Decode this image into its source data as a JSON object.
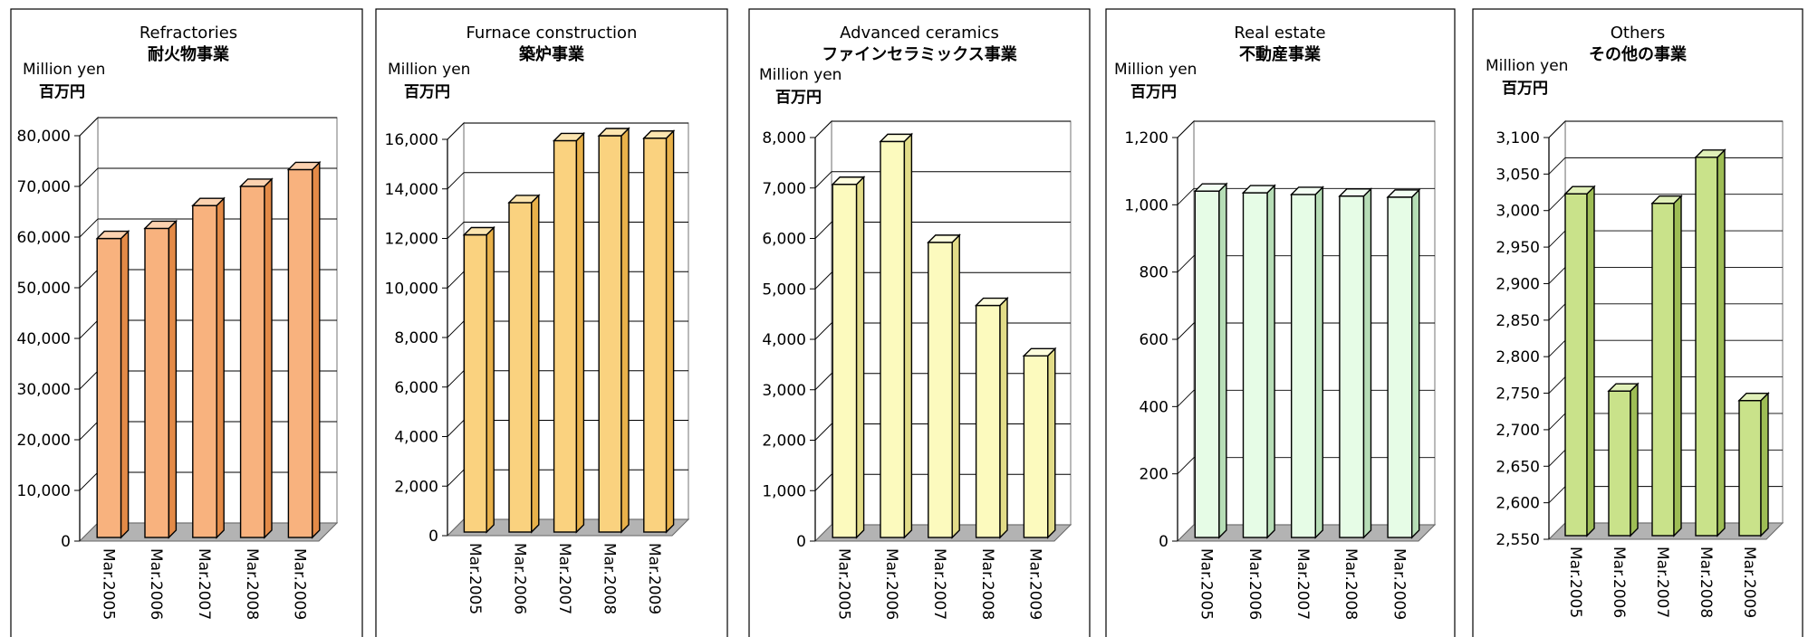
{
  "chart_data": [
    {
      "type": "bar",
      "title": "Refractories",
      "subtitle": "耐火物事業",
      "unit_en": "Million yen",
      "unit_jp": "百万円",
      "categories": [
        "Mar.2005",
        "Mar.2006",
        "Mar.2007",
        "Mar.2008",
        "Mar.2009"
      ],
      "values": [
        59000,
        61000,
        65500,
        69300,
        72600
      ],
      "ylim": [
        0,
        80000
      ],
      "yticks": [
        "0",
        "10,000",
        "20,000",
        "30,000",
        "40,000",
        "50,000",
        "60,000",
        "70,000",
        "80,000"
      ],
      "bar_color": "#F8B27E",
      "bar_side": "#E38A47",
      "bar_top": "#FCD2B0",
      "grid": true
    },
    {
      "type": "bar",
      "title": "Furnace construction",
      "subtitle": "築炉事業",
      "unit_en": "Million yen",
      "unit_jp": "百万円",
      "categories": [
        "Mar.2005",
        "Mar.2006",
        "Mar.2007",
        "Mar.2008",
        "Mar.2009"
      ],
      "values": [
        12000,
        13300,
        15800,
        16000,
        15900
      ],
      "ylim": [
        0,
        16000
      ],
      "yticks": [
        "0",
        "2,000",
        "4,000",
        "6,000",
        "8,000",
        "10,000",
        "12,000",
        "14,000",
        "16,000"
      ],
      "bar_color": "#FAD27F",
      "bar_side": "#E8B14A",
      "bar_top": "#FCE5B0",
      "grid": true
    },
    {
      "type": "bar",
      "title": "Advanced ceramics",
      "subtitle": "ファインセラミックス事業",
      "unit_en": "Million yen",
      "unit_jp": "百万円",
      "categories": [
        "Mar.2005",
        "Mar.2006",
        "Mar.2007",
        "Mar.2008",
        "Mar.2009"
      ],
      "values": [
        7000,
        7850,
        5850,
        4600,
        3600
      ],
      "ylim": [
        0,
        8000
      ],
      "yticks": [
        "0",
        "1,000",
        "2,000",
        "3,000",
        "4,000",
        "5,000",
        "6,000",
        "7,000",
        "8,000"
      ],
      "bar_color": "#FCFABE",
      "bar_side": "#E2DC88",
      "bar_top": "#FEFDDD",
      "grid": true
    },
    {
      "type": "bar",
      "title": "Real estate",
      "subtitle": "不動産事業",
      "unit_en": "Million yen",
      "unit_jp": "百万円",
      "categories": [
        "Mar.2005",
        "Mar.2006",
        "Mar.2007",
        "Mar.2008",
        "Mar.2009"
      ],
      "values": [
        1030,
        1025,
        1020,
        1015,
        1012
      ],
      "ylim": [
        0,
        1200
      ],
      "yticks": [
        "0",
        "200",
        "400",
        "600",
        "800",
        "1,000",
        "1,200"
      ],
      "bar_color": "#E6FCE6",
      "bar_side": "#B6DDB6",
      "bar_top": "#F3FEF3",
      "grid": true
    },
    {
      "type": "bar",
      "title": "Others",
      "subtitle": "その他の事業",
      "unit_en": "Million yen",
      "unit_jp": "百万円",
      "categories": [
        "Mar.2005",
        "Mar.2006",
        "Mar.2007",
        "Mar.2008",
        "Mar.2009"
      ],
      "values": [
        3018,
        2748,
        3005,
        3068,
        2735
      ],
      "ylim": [
        2550,
        3100
      ],
      "yticks": [
        "2,550",
        "2,600",
        "2,650",
        "2,700",
        "2,750",
        "2,800",
        "2,850",
        "2,900",
        "2,950",
        "3,000",
        "3,050",
        "3,100"
      ],
      "bar_color": "#C9E28A",
      "bar_side": "#9EBD55",
      "bar_top": "#E0F0B8",
      "grid": true
    }
  ]
}
